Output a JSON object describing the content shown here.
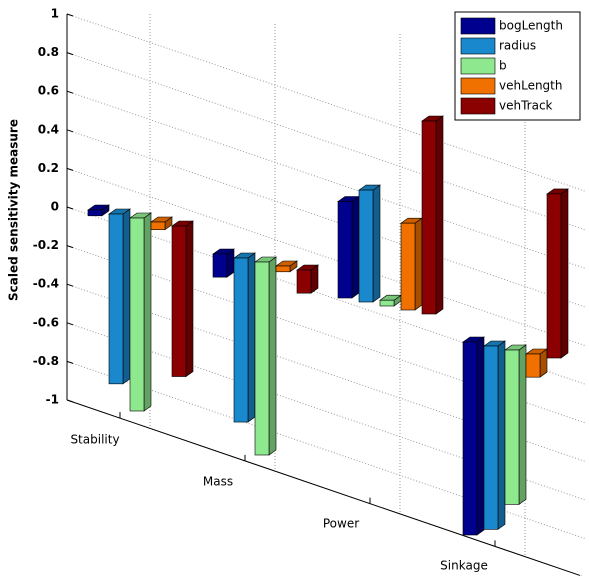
{
  "chart_data": {
    "type": "bar3d",
    "y_label": "Scaled sensitivity measure",
    "categories": [
      "Stability",
      "Mass",
      "Power",
      "Sinkage"
    ],
    "series": [
      {
        "name": "bogLength",
        "color": "#00008f",
        "values": [
          -0.03,
          -0.12,
          0.5,
          -1.0
        ]
      },
      {
        "name": "radius",
        "color": "#1a88cc",
        "values": [
          -0.88,
          -0.85,
          0.58,
          -0.95
        ]
      },
      {
        "name": "b",
        "color": "#8ee88e",
        "values": [
          -1.0,
          -1.0,
          0.03,
          -0.8
        ]
      },
      {
        "name": "vehLength",
        "color": "#f07000",
        "values": [
          -0.04,
          -0.03,
          0.45,
          -0.12
        ]
      },
      {
        "name": "vehTrack",
        "color": "#8b0000",
        "values": [
          -0.78,
          -0.12,
          1.0,
          0.85
        ]
      }
    ],
    "ylim": [
      -1,
      1
    ],
    "yticks": [
      -1,
      -0.8,
      -0.6,
      -0.4,
      -0.2,
      0,
      0.2,
      0.4,
      0.6,
      0.8,
      1
    ],
    "grid": true,
    "legend": "upper right"
  }
}
